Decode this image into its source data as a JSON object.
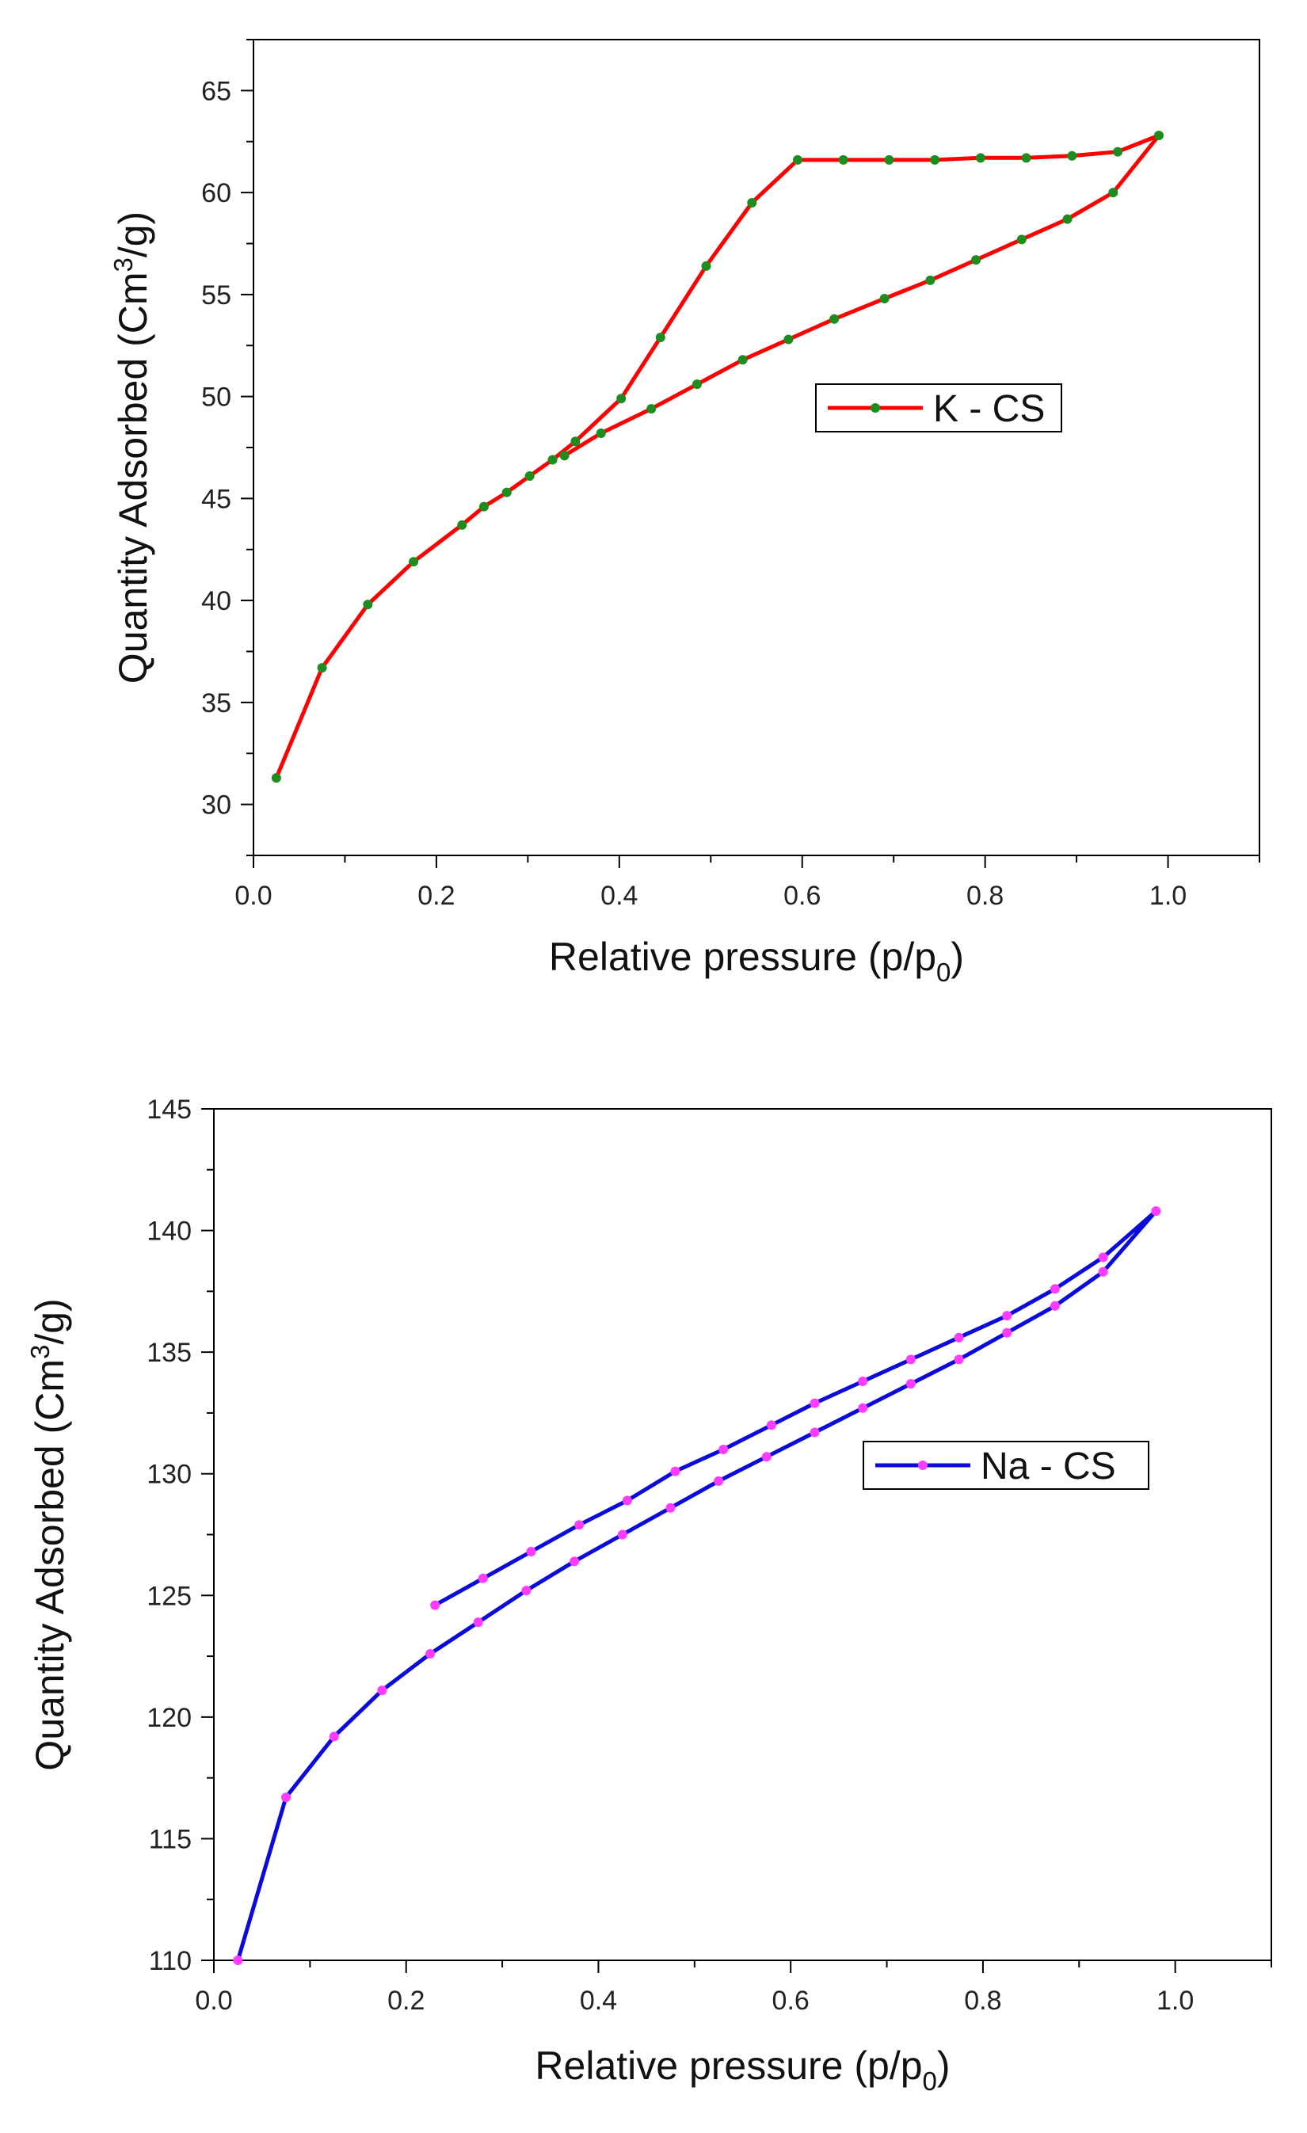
{
  "chart_data": [
    {
      "type": "line",
      "title": "",
      "xlabel": "Relative pressure (p/p0)",
      "ylabel": "Quantity Adsorbed (Cm3/g)",
      "xlim": [
        0.0,
        1.1
      ],
      "ylim": [
        27.5,
        67.5
      ],
      "xticks": [
        0.0,
        0.2,
        0.4,
        0.6,
        0.8,
        1.0
      ],
      "xtick_labels": [
        "0.0",
        "0.2",
        "0.4",
        "0.6",
        "0.8",
        "1.0"
      ],
      "yticks": [
        30,
        35,
        40,
        45,
        50,
        55,
        60,
        65
      ],
      "ytick_labels": [
        "30",
        "35",
        "40",
        "45",
        "50",
        "55",
        "60",
        "65"
      ],
      "legend": {
        "placement": "center-right",
        "entries": [
          "K - CS"
        ]
      },
      "line_color": "#ff0000",
      "marker_color": "#1f8c1f",
      "series": [
        {
          "name": "K - CS",
          "points": [
            [
              0.025,
              31.3
            ],
            [
              0.075,
              36.7
            ],
            [
              0.125,
              39.8
            ],
            [
              0.175,
              41.9
            ],
            [
              0.228,
              43.7
            ],
            [
              0.252,
              44.6
            ],
            [
              0.277,
              45.3
            ],
            [
              0.302,
              46.1
            ],
            [
              0.327,
              46.9
            ],
            [
              0.352,
              47.8
            ],
            [
              0.402,
              49.9
            ],
            [
              0.445,
              52.9
            ],
            [
              0.495,
              56.4
            ],
            [
              0.545,
              59.5
            ],
            [
              0.595,
              61.6
            ],
            [
              0.645,
              61.6
            ],
            [
              0.695,
              61.6
            ],
            [
              0.745,
              61.6
            ],
            [
              0.795,
              61.7
            ],
            [
              0.845,
              61.7
            ],
            [
              0.895,
              61.8
            ],
            [
              0.945,
              62.0
            ],
            [
              0.99,
              62.8
            ],
            [
              0.94,
              60.0
            ],
            [
              0.89,
              58.7
            ],
            [
              0.84,
              57.7
            ],
            [
              0.79,
              56.7
            ],
            [
              0.74,
              55.7
            ],
            [
              0.69,
              54.8
            ],
            [
              0.635,
              53.8
            ],
            [
              0.585,
              52.8
            ],
            [
              0.535,
              51.8
            ],
            [
              0.485,
              50.6
            ],
            [
              0.435,
              49.4
            ],
            [
              0.38,
              48.2
            ],
            [
              0.34,
              47.1
            ]
          ]
        }
      ]
    },
    {
      "type": "line",
      "title": "",
      "xlabel": "Relative pressure (p/p0)",
      "ylabel": "Quantity Adsorbed (Cm3/g)",
      "xlim": [
        0.0,
        1.1
      ],
      "ylim": [
        110,
        145
      ],
      "xticks": [
        0.0,
        0.2,
        0.4,
        0.6,
        0.8,
        1.0
      ],
      "xtick_labels": [
        "0.0",
        "0.2",
        "0.4",
        "0.6",
        "0.8",
        "1.0"
      ],
      "yticks": [
        110,
        115,
        120,
        125,
        130,
        135,
        140,
        145
      ],
      "ytick_labels": [
        "110",
        "115",
        "120",
        "125",
        "130",
        "135",
        "140",
        "145"
      ],
      "legend": {
        "placement": "center-right",
        "entries": [
          "Na - CS"
        ]
      },
      "line_color": "#0a0adc",
      "marker_color": "#ff3cff",
      "series": [
        {
          "name": "Na - CS",
          "points": [
            [
              0.025,
              110.0
            ],
            [
              0.075,
              116.7
            ],
            [
              0.125,
              119.2
            ],
            [
              0.175,
              121.1
            ],
            [
              0.225,
              122.6
            ],
            [
              0.275,
              123.9
            ],
            [
              0.325,
              125.2
            ],
            [
              0.375,
              126.4
            ],
            [
              0.425,
              127.5
            ],
            [
              0.475,
              128.6
            ],
            [
              0.525,
              129.7
            ],
            [
              0.575,
              130.7
            ],
            [
              0.625,
              131.7
            ],
            [
              0.675,
              132.7
            ],
            [
              0.725,
              133.7
            ],
            [
              0.775,
              134.7
            ],
            [
              0.825,
              135.8
            ],
            [
              0.875,
              136.9
            ],
            [
              0.925,
              138.3
            ],
            [
              0.98,
              140.8
            ],
            [
              0.925,
              138.9
            ],
            [
              0.875,
              137.6
            ],
            [
              0.825,
              136.5
            ],
            [
              0.775,
              135.6
            ],
            [
              0.725,
              134.7
            ],
            [
              0.675,
              133.8
            ],
            [
              0.625,
              132.9
            ],
            [
              0.58,
              132.0
            ],
            [
              0.53,
              131.0
            ],
            [
              0.48,
              130.1
            ],
            [
              0.43,
              128.9
            ],
            [
              0.38,
              127.9
            ],
            [
              0.33,
              126.8
            ],
            [
              0.28,
              125.7
            ],
            [
              0.23,
              124.6
            ]
          ]
        }
      ]
    }
  ]
}
